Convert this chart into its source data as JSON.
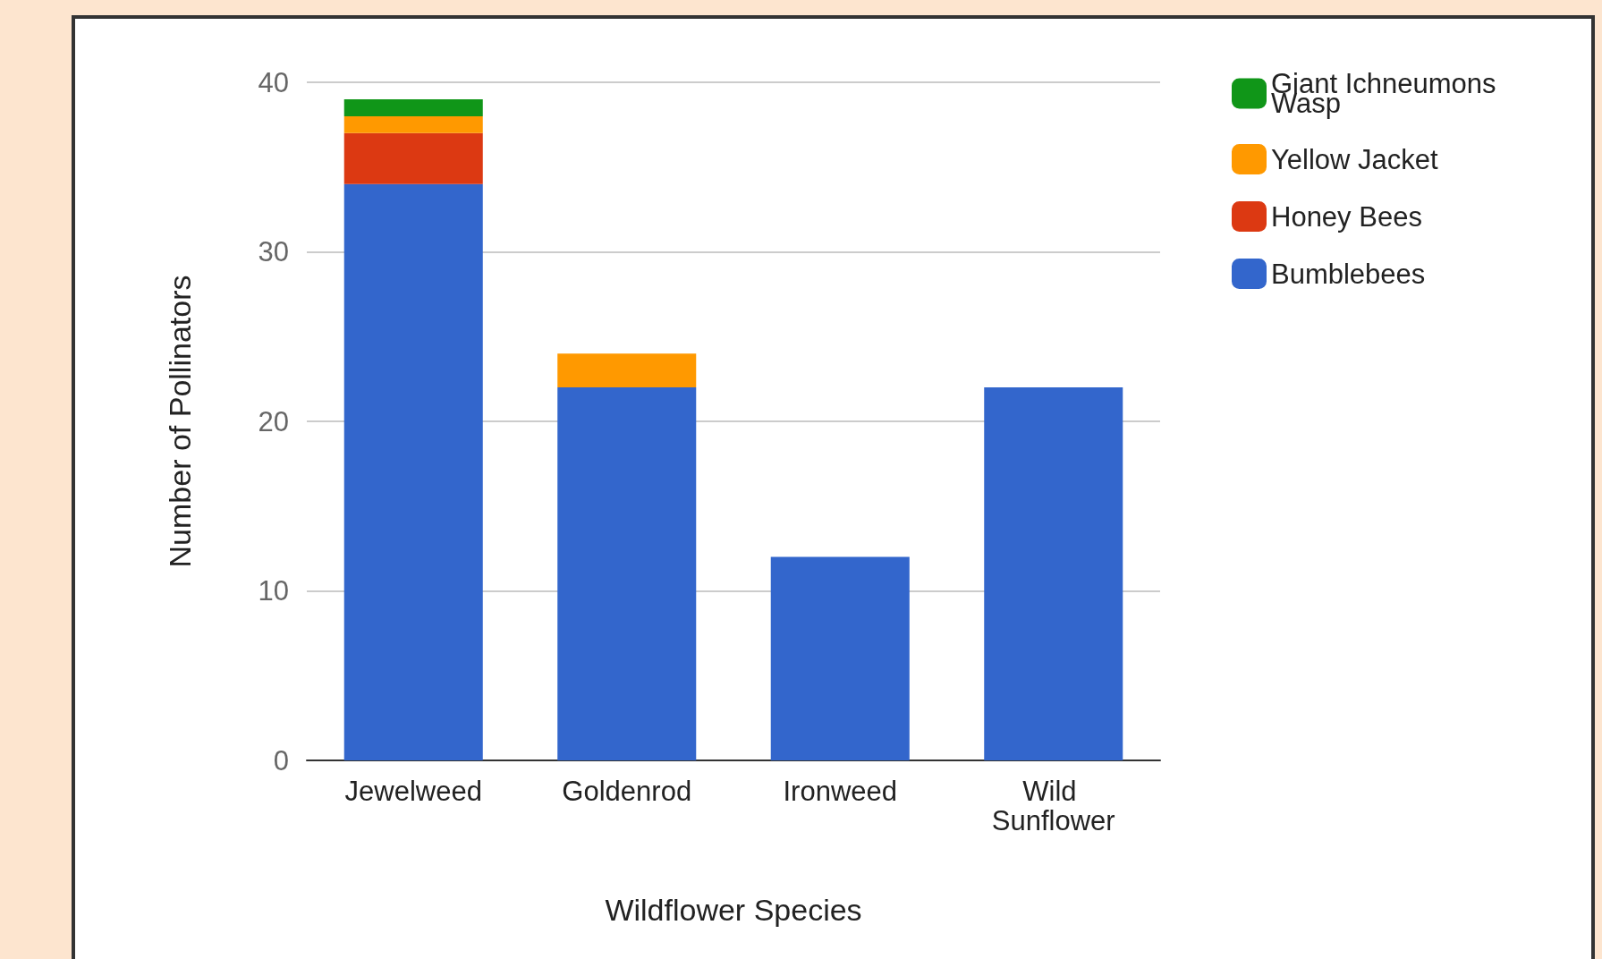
{
  "chart_data": {
    "type": "bar",
    "stacked": true,
    "xlabel": "Wildflower Species",
    "ylabel": "Number of Pollinators",
    "categories": [
      "Jewelweed",
      "Goldenrod",
      "Ironweed",
      "Wild Sunflower"
    ],
    "series": [
      {
        "name": "Bumblebees",
        "color": "#3366cc",
        "values": [
          34,
          22,
          12,
          22
        ]
      },
      {
        "name": "Honey Bees",
        "color": "#dc3912",
        "values": [
          3,
          0,
          0,
          0
        ]
      },
      {
        "name": "Yellow Jacket",
        "color": "#ff9900",
        "values": [
          1,
          2,
          0,
          0
        ]
      },
      {
        "name": "Giant Ichneumons Wasp",
        "color": "#109618",
        "values": [
          1,
          0,
          0,
          0
        ]
      }
    ],
    "ylim": [
      0,
      40
    ],
    "yticks": [
      0,
      10,
      20,
      30,
      40
    ],
    "grid": "y",
    "legend": "top right"
  }
}
